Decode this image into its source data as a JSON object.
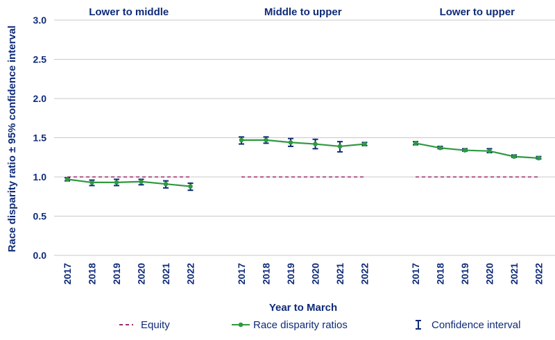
{
  "chart_data": {
    "type": "line",
    "ylabel": "Race disparity ratio ± 95% confidence interval",
    "xlabel": "Year to March",
    "ylim": [
      0,
      3
    ],
    "yticks": [
      "0.0",
      "0.5",
      "1.0",
      "1.5",
      "2.0",
      "2.5",
      "3.0"
    ],
    "grid": "horizontal",
    "legend_position": "bottom",
    "legend": [
      "Equity",
      "Race disparity ratios",
      "Confidence interval"
    ],
    "colors": {
      "ratio": "#2e9a3e",
      "equity": "#9b2a6a",
      "ci": "#0e2a78",
      "text": "#0e2a78",
      "grid": "#c8c8c8"
    },
    "panels": [
      {
        "title": "Lower to middle",
        "x": [
          "2017",
          "2018",
          "2019",
          "2020",
          "2021",
          "2022"
        ],
        "ratio": [
          0.97,
          0.93,
          0.93,
          0.94,
          0.91,
          0.88
        ],
        "ci_low": [
          0.95,
          0.89,
          0.89,
          0.9,
          0.86,
          0.83
        ],
        "ci_high": [
          0.99,
          0.96,
          0.97,
          0.97,
          0.95,
          0.92
        ],
        "equity": 1.0
      },
      {
        "title": "Middle to upper",
        "x": [
          "2017",
          "2018",
          "2019",
          "2020",
          "2021",
          "2022"
        ],
        "ratio": [
          1.47,
          1.47,
          1.44,
          1.42,
          1.39,
          1.42
        ],
        "ci_low": [
          1.42,
          1.43,
          1.39,
          1.36,
          1.32,
          1.4
        ],
        "ci_high": [
          1.51,
          1.51,
          1.49,
          1.48,
          1.45,
          1.44
        ],
        "equity": 1.0
      },
      {
        "title": "Lower to upper",
        "x": [
          "2017",
          "2018",
          "2019",
          "2020",
          "2021",
          "2022"
        ],
        "ratio": [
          1.43,
          1.37,
          1.34,
          1.33,
          1.26,
          1.24
        ],
        "ci_low": [
          1.41,
          1.36,
          1.33,
          1.31,
          1.25,
          1.23
        ],
        "ci_high": [
          1.45,
          1.39,
          1.36,
          1.36,
          1.28,
          1.26
        ],
        "equity": 1.0
      }
    ]
  }
}
